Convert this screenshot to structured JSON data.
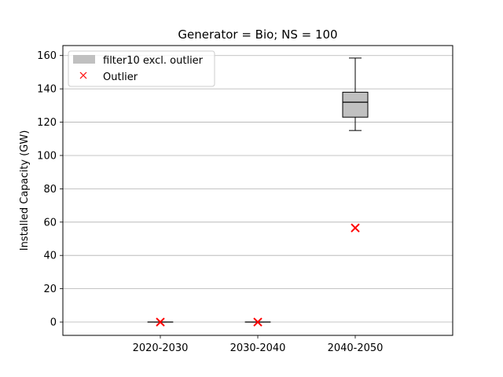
{
  "chart_data": {
    "type": "box",
    "title": "Generator = Bio; NS = 100",
    "xlabel": "",
    "ylabel": "Installed Capacity (GW)",
    "categories": [
      "2020-2030",
      "2030-2040",
      "2040-2050"
    ],
    "ylim": [
      -8,
      166
    ],
    "yticks": [
      0,
      20,
      40,
      60,
      80,
      100,
      120,
      140,
      160
    ],
    "grid": "horizontal",
    "legend_placement": "top-left",
    "series": [
      {
        "name": "filter10 excl. outlier",
        "kind": "box",
        "color": "#c0c0c0",
        "boxes": [
          {
            "category": "2020-2030",
            "whislo": 0,
            "q1": 0,
            "med": 0,
            "q3": 0,
            "whishi": 0
          },
          {
            "category": "2030-2040",
            "whislo": 0,
            "q1": 0,
            "med": 0,
            "q3": 0,
            "whishi": 0
          },
          {
            "category": "2040-2050",
            "whislo": 115,
            "q1": 123,
            "med": 132,
            "q3": 138,
            "whishi": 158.5
          }
        ]
      },
      {
        "name": "Outlier",
        "kind": "marker",
        "marker": "x",
        "color": "#ff0000",
        "points": [
          {
            "category": "2020-2030",
            "y": 0
          },
          {
            "category": "2030-2040",
            "y": 0
          },
          {
            "category": "2040-2050",
            "y": 56.5
          }
        ]
      }
    ]
  }
}
